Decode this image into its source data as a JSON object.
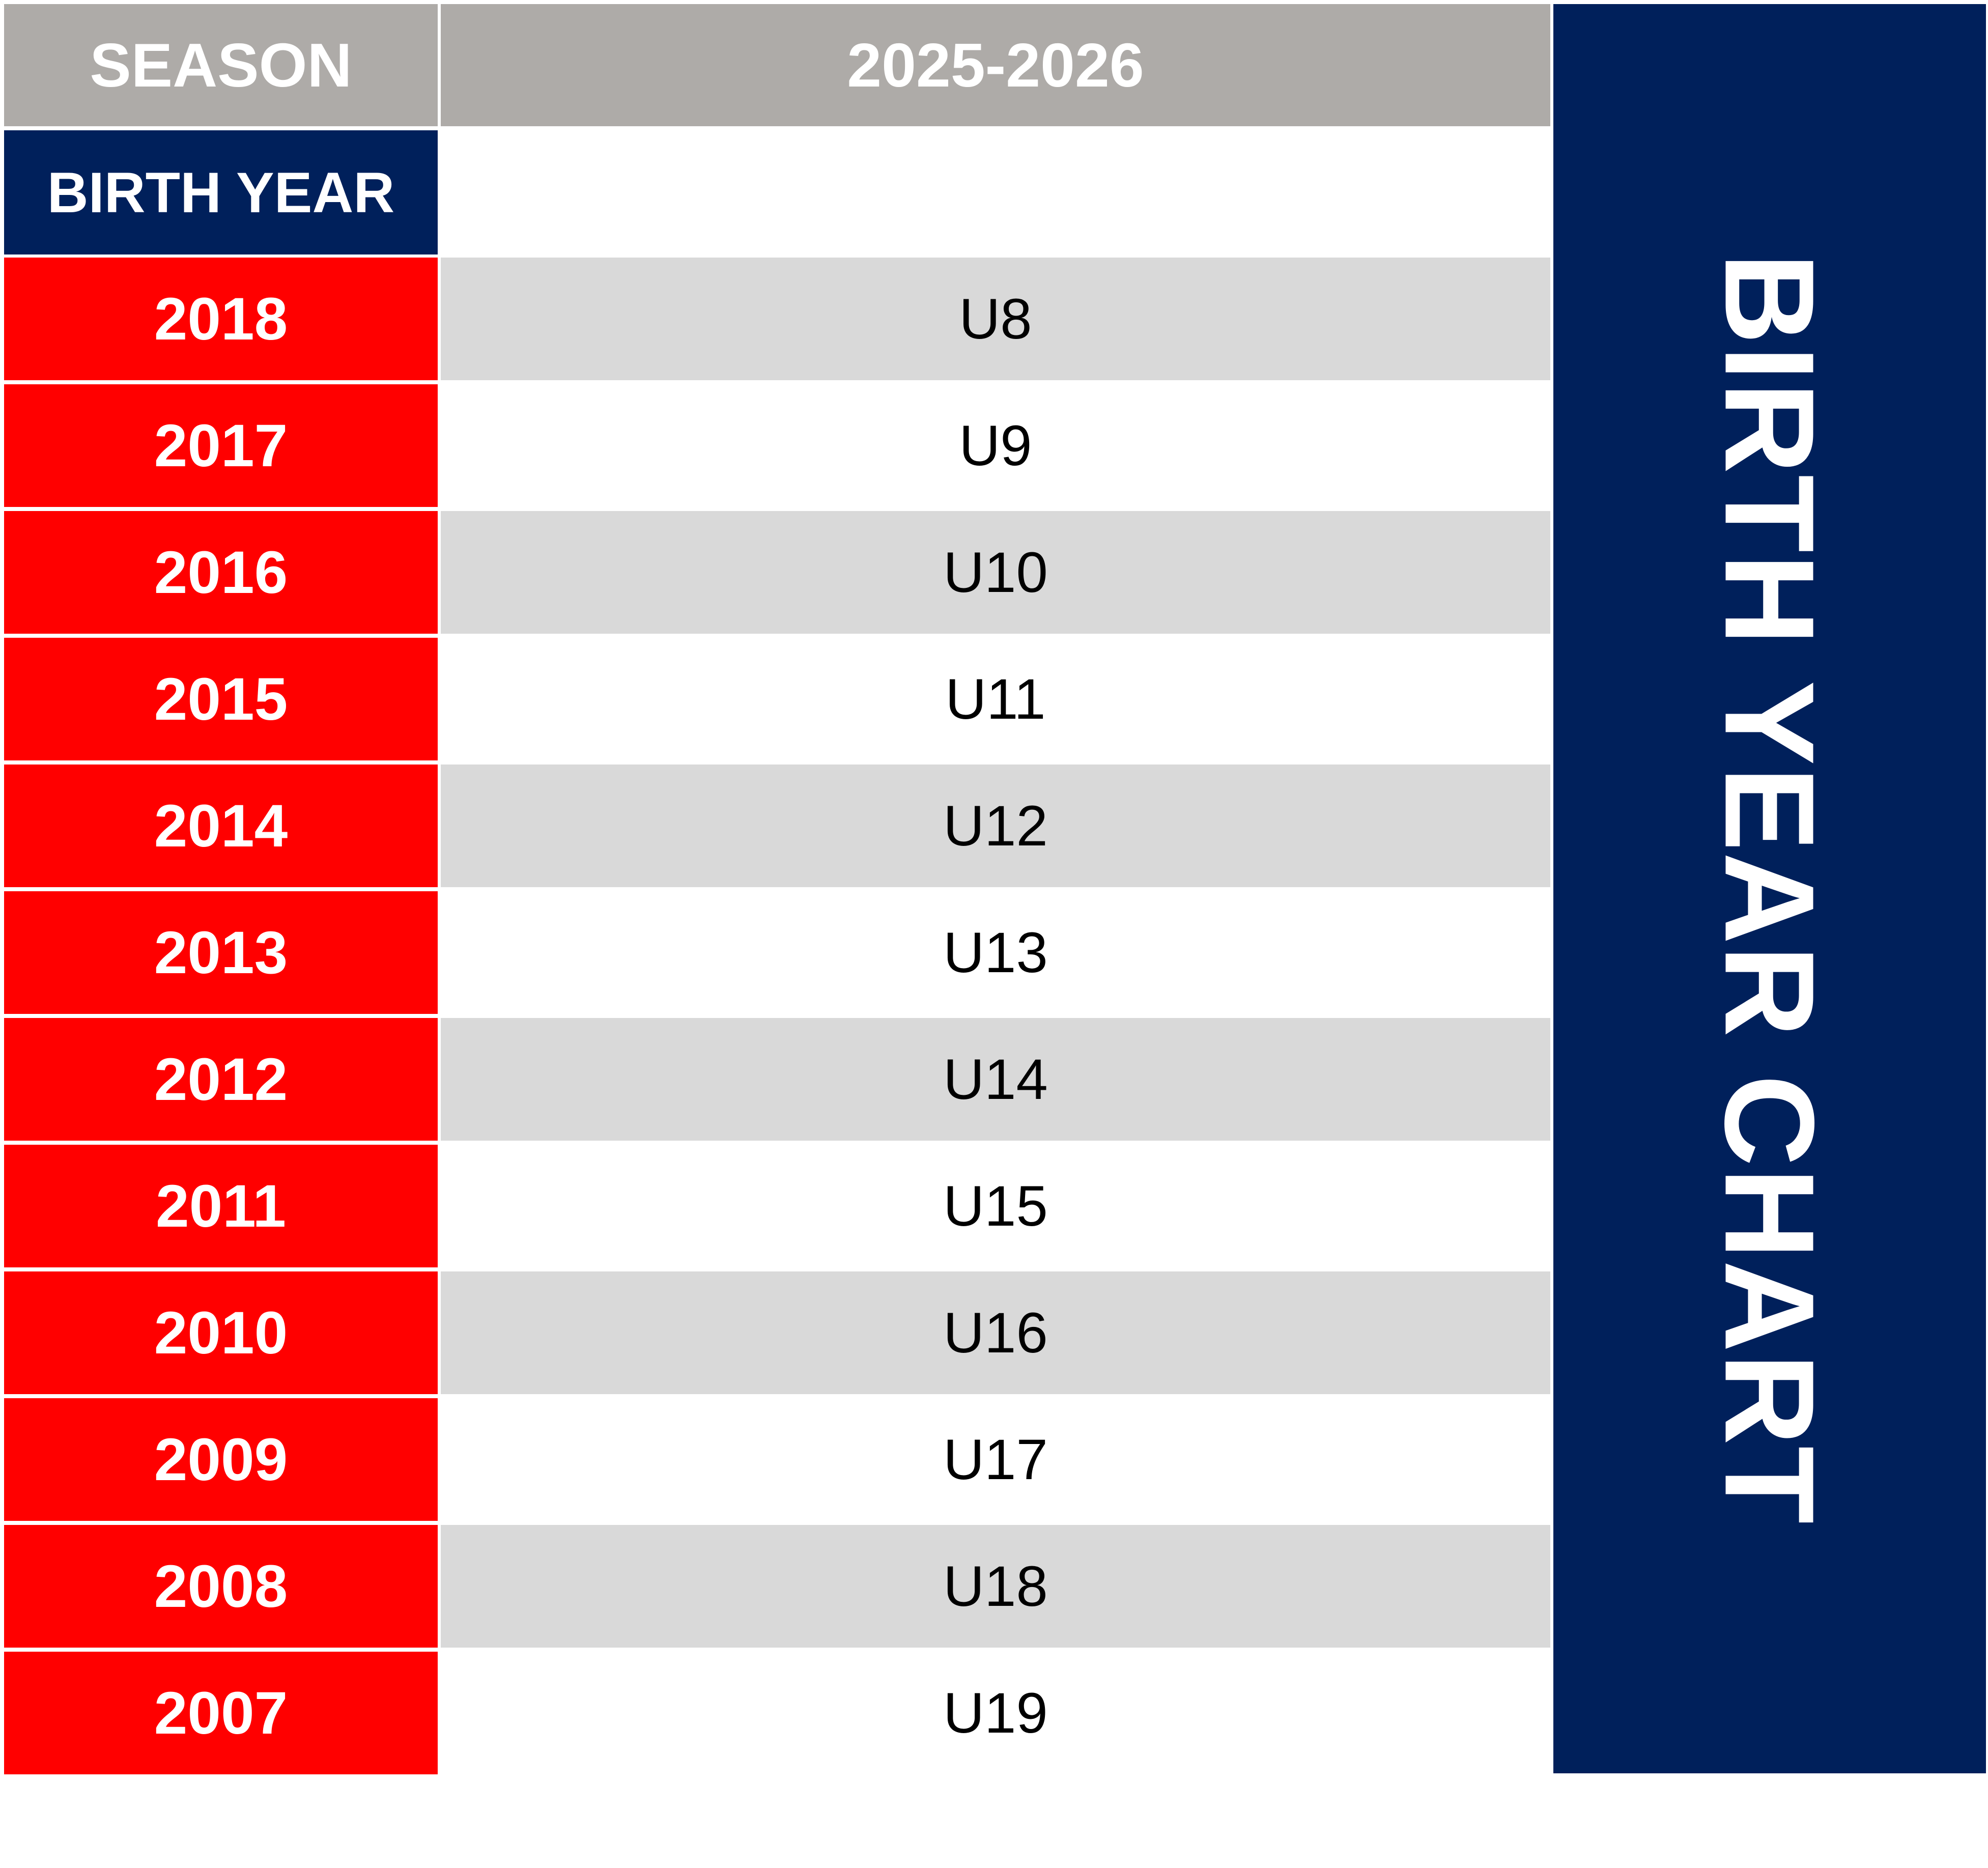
{
  "header": {
    "season_label": "SEASON",
    "season_value": "2025-2026",
    "birth_year_label": "BIRTH YEAR"
  },
  "side_title": "BIRTH YEAR CHART",
  "rows": [
    {
      "year": "2018",
      "age_group": "U8"
    },
    {
      "year": "2017",
      "age_group": "U9"
    },
    {
      "year": "2016",
      "age_group": "U10"
    },
    {
      "year": "2015",
      "age_group": "U11"
    },
    {
      "year": "2014",
      "age_group": "U12"
    },
    {
      "year": "2013",
      "age_group": "U13"
    },
    {
      "year": "2012",
      "age_group": "U14"
    },
    {
      "year": "2011",
      "age_group": "U15"
    },
    {
      "year": "2010",
      "age_group": "U16"
    },
    {
      "year": "2009",
      "age_group": "U17"
    },
    {
      "year": "2008",
      "age_group": "U18"
    },
    {
      "year": "2007",
      "age_group": "U19"
    }
  ],
  "colors": {
    "header_gray": "#aeaba8",
    "navy": "#00205b",
    "year_red": "#ff0000",
    "row_shade": "#d9d9d9"
  }
}
